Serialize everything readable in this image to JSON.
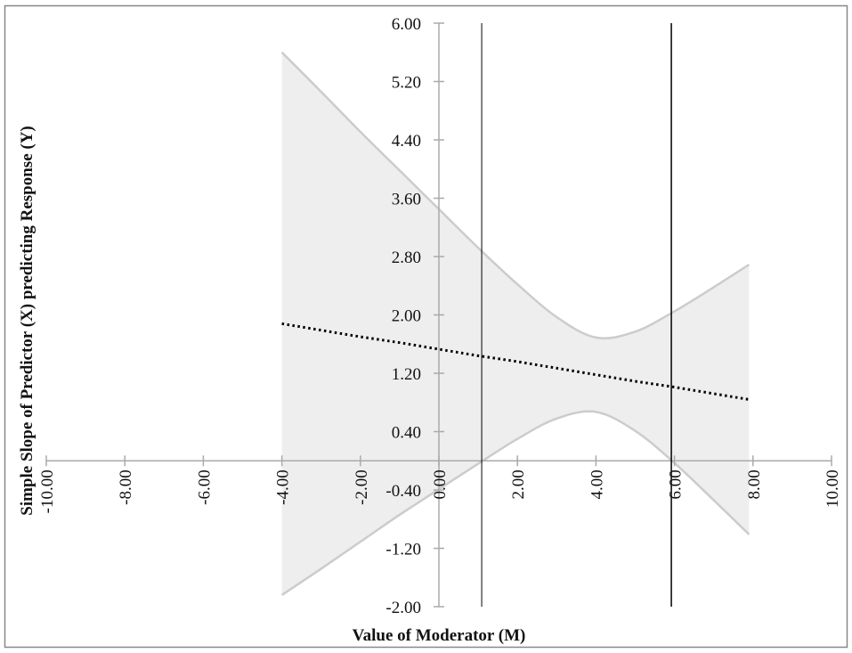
{
  "chart_data": {
    "type": "line",
    "title": "",
    "xlabel": "Value of Moderator (M)",
    "ylabel": "Simple Slope of Predictor (X) predicting Response (Y)",
    "xlim": [
      -10,
      10
    ],
    "ylim": [
      -2,
      6
    ],
    "x_ticks": [
      "-10.00",
      "-8.00",
      "-6.00",
      "-4.00",
      "-2.00",
      "0.00",
      "2.00",
      "4.00",
      "6.00",
      "8.00",
      "10.00"
    ],
    "y_ticks": [
      "6.00",
      "5.20",
      "4.40",
      "3.60",
      "2.80",
      "2.00",
      "1.20",
      "0.40",
      "-0.40",
      "-1.20",
      "-2.00"
    ],
    "grid": false,
    "x": [
      -4,
      -3,
      -2,
      -1,
      0,
      1,
      2,
      3,
      4,
      5,
      6,
      7,
      7.9
    ],
    "series": [
      {
        "role": "simple-slope",
        "style": "dotted",
        "color": "#000000",
        "values": [
          1.88,
          1.79,
          1.7,
          1.62,
          1.53,
          1.44,
          1.36,
          1.27,
          1.18,
          1.09,
          1.01,
          0.92,
          0.84
        ]
      },
      {
        "role": "upper-confidence-band",
        "color": "#cccccc",
        "values": [
          5.6,
          5.06,
          4.51,
          3.98,
          3.45,
          2.92,
          2.42,
          1.97,
          1.69,
          1.77,
          2.05,
          2.38,
          2.69
        ]
      },
      {
        "role": "lower-confidence-band",
        "color": "#cccccc",
        "values": [
          -1.84,
          -1.48,
          -1.11,
          -0.74,
          -0.39,
          -0.04,
          0.3,
          0.58,
          0.67,
          0.41,
          -0.03,
          -0.54,
          -1.01
        ]
      }
    ],
    "band_fill": "#eeeeee",
    "region_boundaries": [
      1.09,
      5.92
    ]
  }
}
